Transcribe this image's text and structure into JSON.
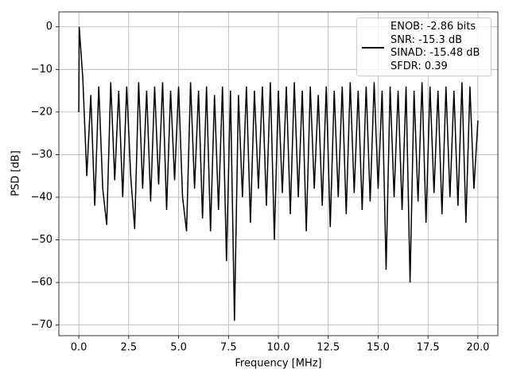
{
  "chart_data": {
    "type": "line",
    "x_label": "Frequency [MHz]",
    "y_label": "PSD [dB]",
    "xlim": [
      -1,
      21
    ],
    "ylim": [
      -72.5,
      3.5
    ],
    "xticks": [
      {
        "value": 0,
        "label": "0.0"
      },
      2.5,
      {
        "value": 5,
        "label": "5.0"
      },
      7.5,
      {
        "value": 10,
        "label": "10.0"
      },
      12.5,
      {
        "value": 15,
        "label": "15.0"
      },
      17.5,
      {
        "value": 20,
        "label": "20.0"
      }
    ],
    "yticks": [
      {
        "value": -70,
        "label": "−70"
      },
      {
        "value": -60,
        "label": "−60"
      },
      {
        "value": -50,
        "label": "−50"
      },
      {
        "value": -40,
        "label": "−40"
      },
      {
        "value": -30,
        "label": "−30"
      },
      {
        "value": -20,
        "label": "−20"
      },
      {
        "value": -10,
        "label": "−10"
      },
      0
    ],
    "grid": true,
    "legend": "upper right",
    "x": [
      0,
      0.02,
      0.2,
      0.4,
      0.6,
      0.8,
      1.0,
      1.2,
      1.4,
      1.6,
      1.8,
      2.0,
      2.2,
      2.4,
      2.6,
      2.8,
      3.0,
      3.2,
      3.4,
      3.6,
      3.8,
      4.0,
      4.2,
      4.4,
      4.6,
      4.8,
      5.0,
      5.2,
      5.4,
      5.6,
      5.8,
      6.0,
      6.2,
      6.4,
      6.6,
      6.8,
      7.0,
      7.2,
      7.4,
      7.6,
      7.8,
      8.0,
      8.2,
      8.4,
      8.6,
      8.8,
      9.0,
      9.2,
      9.4,
      9.6,
      9.8,
      10.0,
      10.2,
      10.4,
      10.6,
      10.8,
      11.0,
      11.2,
      11.4,
      11.6,
      11.8,
      12.0,
      12.2,
      12.4,
      12.6,
      12.8,
      13.0,
      13.2,
      13.4,
      13.6,
      13.8,
      14.0,
      14.2,
      14.4,
      14.6,
      14.8,
      15.0,
      15.2,
      15.4,
      15.6,
      15.8,
      16.0,
      16.2,
      16.4,
      16.6,
      16.8,
      17.0,
      17.2,
      17.4,
      17.6,
      17.8,
      18.0,
      18.2,
      18.4,
      18.6,
      18.8,
      19.0,
      19.2,
      19.4,
      19.6,
      19.8,
      20.0
    ],
    "series": [
      {
        "name": "ENOB: -2.86 bits\nSNR: -15.3 dB\nSINAD: -15.48 dB\nSFDR: 0.39",
        "color": "#000000",
        "values": [
          -20,
          0,
          -12,
          -35,
          -16,
          -42,
          -14,
          -38,
          -46.5,
          -13,
          -36,
          -15,
          -40,
          -14,
          -35,
          -47.5,
          -13,
          -38,
          -15,
          -41,
          -14,
          -37,
          -13,
          -43,
          -15,
          -36,
          -14,
          -40,
          -48,
          -13,
          -38,
          -15,
          -45,
          -14,
          -48,
          -16,
          -43,
          -14,
          -55,
          -15,
          -69,
          -16,
          -40,
          -14,
          -46,
          -15,
          -38,
          -14,
          -42,
          -13,
          -50,
          -15,
          -39,
          -14,
          -44,
          -13,
          -40,
          -15,
          -48,
          -14,
          -38,
          -16,
          -42,
          -14,
          -47,
          -15,
          -40,
          -14,
          -44,
          -13,
          -39,
          -15,
          -43,
          -14,
          -41,
          -13,
          -38,
          -15,
          -57,
          -14,
          -40,
          -15,
          -43,
          -14,
          -60,
          -15,
          -41,
          -13,
          -46,
          -14,
          -39,
          -15,
          -44,
          -14,
          -40,
          -15,
          -42,
          -13,
          -46,
          -14,
          -38,
          -22
        ]
      }
    ]
  }
}
